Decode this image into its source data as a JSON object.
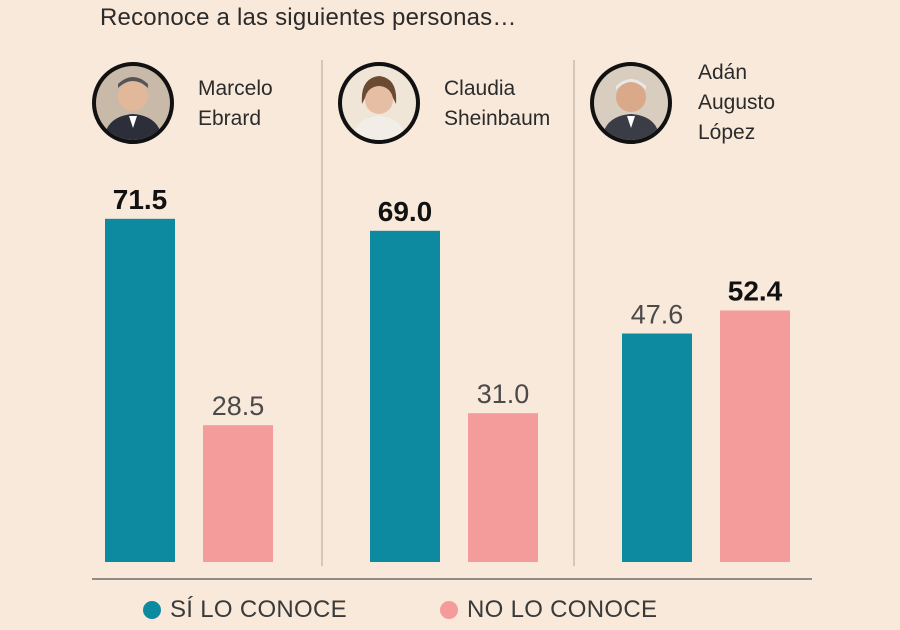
{
  "title": "Reconoce a las siguientes personas…",
  "colors": {
    "si": "#0e8aa0",
    "no": "#f49b9b",
    "background": "#f9e9da"
  },
  "people": [
    {
      "name_lines": [
        "Marcelo",
        "Ebrard"
      ],
      "avatar": "portrait-marcelo-ebrard"
    },
    {
      "name_lines": [
        "Claudia",
        "Sheinbaum"
      ],
      "avatar": "portrait-claudia-sheinbaum"
    },
    {
      "name_lines": [
        "Adán",
        "Augusto",
        "López"
      ],
      "avatar": "portrait-adan-augusto-lopez"
    }
  ],
  "legend": {
    "si_label": "SÍ LO CONOCE",
    "no_label": "NO LO CONOCE"
  },
  "chart_data": {
    "type": "bar",
    "title": "Reconoce a las siguientes personas…",
    "categories": [
      "Marcelo Ebrard",
      "Claudia Sheinbaum",
      "Adán Augusto López"
    ],
    "series": [
      {
        "name": "SÍ LO CONOCE",
        "values": [
          71.5,
          69.0,
          47.6
        ],
        "labels": [
          "71.5",
          "69.0",
          "47.6"
        ]
      },
      {
        "name": "NO LO CONOCE",
        "values": [
          28.5,
          31.0,
          52.4
        ],
        "labels": [
          "28.5",
          "31.0",
          "52.4"
        ]
      }
    ],
    "ylim": [
      0,
      100
    ],
    "grid": false,
    "legend_position": "bottom",
    "xlabel": "",
    "ylabel": ""
  }
}
